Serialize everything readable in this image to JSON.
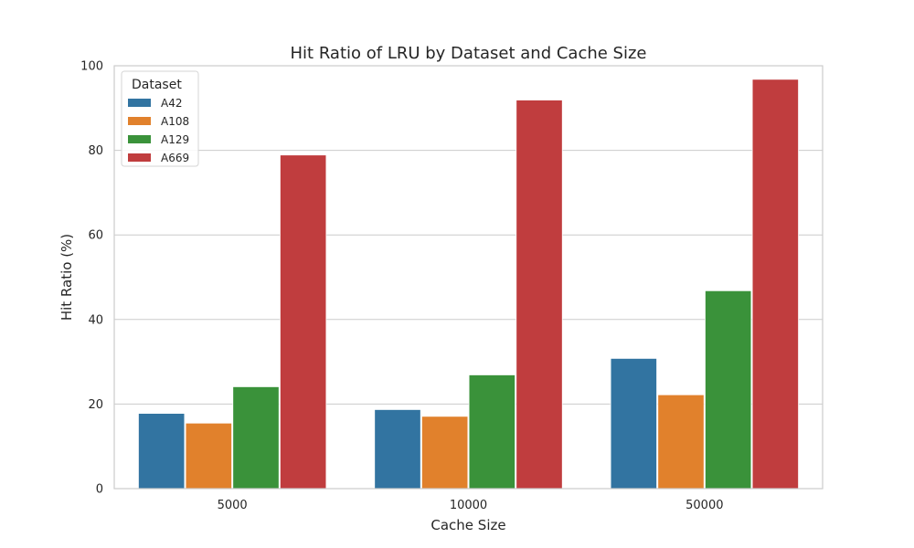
{
  "chart_data": {
    "type": "bar",
    "title": "Hit Ratio of LRU by Dataset and Cache Size",
    "xlabel": "Cache Size",
    "ylabel": "Hit Ratio (%)",
    "ylim": [
      0,
      100
    ],
    "yticks": [
      "0",
      "20",
      "40",
      "60",
      "80",
      "100"
    ],
    "grid": true,
    "categories": [
      "5000",
      "10000",
      "50000"
    ],
    "legend": {
      "title": "Dataset",
      "placement": "top-left"
    },
    "series": [
      {
        "name": "A42",
        "color": "#3274a1",
        "values": [
          17.8,
          18.7,
          30.8
        ]
      },
      {
        "name": "A108",
        "color": "#e1812c",
        "values": [
          15.5,
          17.1,
          22.2
        ]
      },
      {
        "name": "A129",
        "color": "#3a923a",
        "values": [
          24.1,
          26.9,
          46.8
        ]
      },
      {
        "name": "A669",
        "color": "#c03d3e",
        "values": [
          78.9,
          91.9,
          96.8
        ]
      }
    ]
  }
}
